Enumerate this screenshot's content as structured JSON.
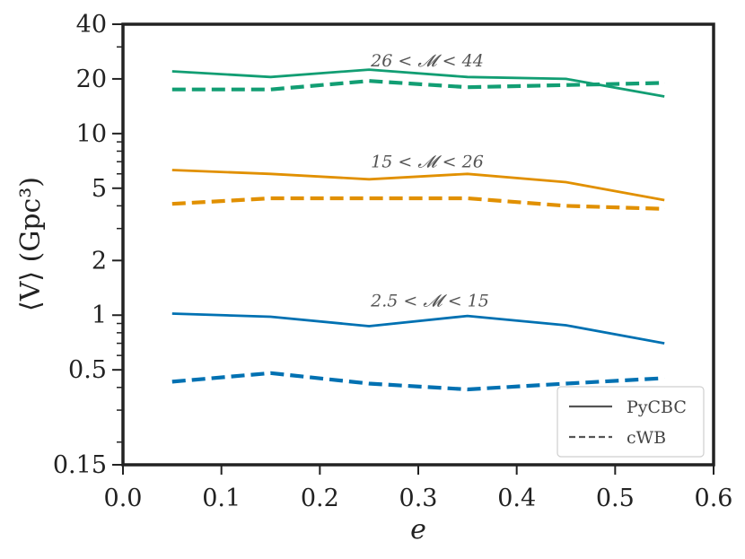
{
  "chart_data": {
    "type": "line",
    "xlabel": "e",
    "ylabel": "⟨V⟩ (Gpc³)",
    "yscale": "log",
    "xlim": [
      0.0,
      0.6
    ],
    "ylim": [
      0.15,
      40
    ],
    "xticks": [
      {
        "value": 0.0,
        "label": "0.0"
      },
      {
        "value": 0.1,
        "label": "0.1"
      },
      {
        "value": 0.2,
        "label": "0.2"
      },
      {
        "value": 0.3,
        "label": "0.3"
      },
      {
        "value": 0.4,
        "label": "0.4"
      },
      {
        "value": 0.5,
        "label": "0.5"
      },
      {
        "value": 0.6,
        "label": "0.6"
      }
    ],
    "yticks": [
      {
        "value": 0.15,
        "label": "0.15"
      },
      {
        "value": 0.5,
        "label": "0.5"
      },
      {
        "value": 1,
        "label": "1"
      },
      {
        "value": 2,
        "label": "2"
      },
      {
        "value": 5,
        "label": "5"
      },
      {
        "value": 10,
        "label": "10"
      },
      {
        "value": 20,
        "label": "20"
      },
      {
        "value": 40,
        "label": "40"
      }
    ],
    "x": [
      0.05,
      0.15,
      0.25,
      0.35,
      0.45,
      0.55
    ],
    "series": [
      {
        "name": "PyCBC 26 < M < 44",
        "method": "PyCBC",
        "color": "#129e73",
        "style": "solid",
        "values": [
          22.0,
          20.5,
          22.5,
          20.5,
          20.0,
          16.0
        ]
      },
      {
        "name": "cWB 26 < M < 44",
        "method": "cWB",
        "color": "#129e73",
        "style": "dashed",
        "values": [
          17.5,
          17.5,
          19.5,
          18.0,
          18.5,
          19.0
        ]
      },
      {
        "name": "PyCBC 15 < M < 26",
        "method": "PyCBC",
        "color": "#e19000",
        "style": "solid",
        "values": [
          6.3,
          6.0,
          5.6,
          6.0,
          5.4,
          4.3
        ]
      },
      {
        "name": "cWB 15 < M < 26",
        "method": "cWB",
        "color": "#e19000",
        "style": "dashed",
        "values": [
          4.1,
          4.4,
          4.4,
          4.4,
          4.0,
          3.85
        ]
      },
      {
        "name": "PyCBC 2.5 < M < 15",
        "method": "PyCBC",
        "color": "#0071b2",
        "style": "solid",
        "values": [
          1.02,
          0.98,
          0.87,
          0.99,
          0.88,
          0.7
        ]
      },
      {
        "name": "cWB 2.5 < M < 15",
        "method": "cWB",
        "color": "#0071b2",
        "style": "dashed",
        "values": [
          0.43,
          0.48,
          0.42,
          0.39,
          0.42,
          0.45
        ]
      }
    ],
    "annotations": [
      {
        "text": "26 < 𝓜 < 44",
        "x": 0.25,
        "y": 23.5
      },
      {
        "text": "15 < 𝓜 < 26",
        "x": 0.25,
        "y": 6.5
      },
      {
        "text": "2.5 < 𝓜 < 15",
        "x": 0.25,
        "y": 1.12
      }
    ],
    "legend": {
      "position": "bottom-right",
      "entries": [
        {
          "label": "PyCBC",
          "style": "solid"
        },
        {
          "label": "cWB",
          "style": "dashed"
        }
      ]
    }
  }
}
